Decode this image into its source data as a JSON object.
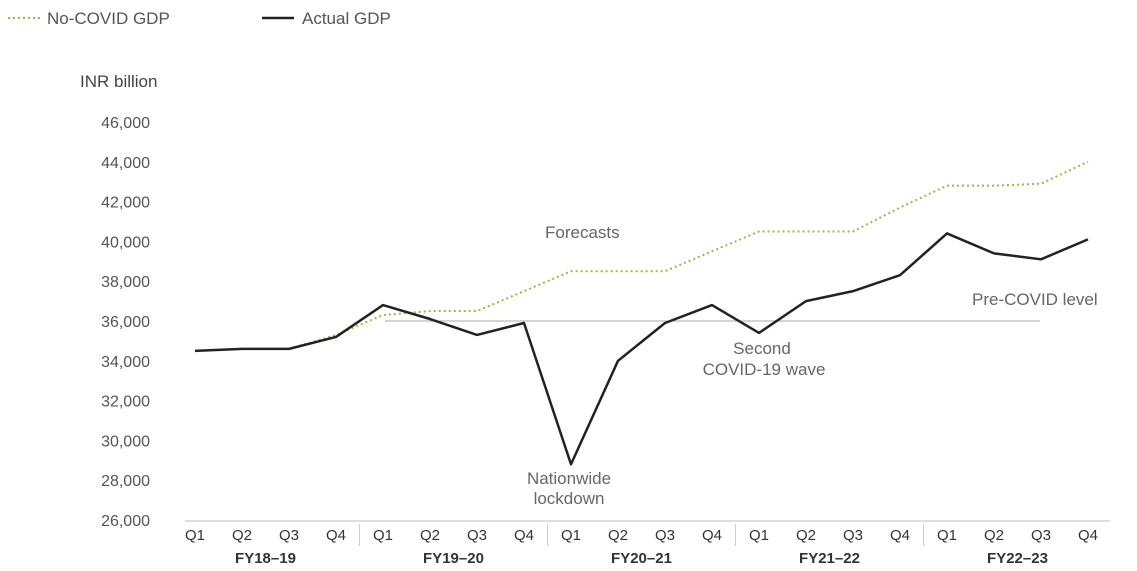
{
  "chart_data": {
    "type": "line",
    "ylabel": "INR billion",
    "ylim": [
      26000,
      46000
    ],
    "yticks": [
      46000,
      44000,
      42000,
      40000,
      38000,
      36000,
      34000,
      32000,
      30000,
      28000,
      26000
    ],
    "ytick_labels": [
      "46,000",
      "44,000",
      "42,000",
      "40,000",
      "38,000",
      "36,000",
      "34,000",
      "32,000",
      "30,000",
      "28,000",
      "26,000"
    ],
    "quarters": [
      "Q1",
      "Q2",
      "Q3",
      "Q4",
      "Q1",
      "Q2",
      "Q3",
      "Q4",
      "Q1",
      "Q2",
      "Q3",
      "Q4",
      "Q1",
      "Q2",
      "Q3",
      "Q4",
      "Q1",
      "Q2",
      "Q3",
      "Q4"
    ],
    "fiscal_years": [
      "FY18–19",
      "FY19–20",
      "FY20–21",
      "FY21–22",
      "FY22–23"
    ],
    "series": [
      {
        "name": "No-COVID GDP",
        "color": "#9ab84a",
        "style": "dotted",
        "values": [
          34500,
          34600,
          34600,
          35300,
          36300,
          36500,
          36500,
          37500,
          38500,
          38500,
          38500,
          39500,
          40500,
          40500,
          40500,
          41700,
          42800,
          42800,
          42900,
          44000
        ]
      },
      {
        "name": "Actual GDP",
        "color": "#222222",
        "style": "solid",
        "values": [
          34500,
          34600,
          34600,
          35200,
          36800,
          36100,
          35300,
          35900,
          28800,
          34000,
          35900,
          36800,
          35400,
          37000,
          37500,
          38300,
          40400,
          39400,
          39100,
          40100
        ]
      }
    ],
    "reference_line": {
      "label": "Pre-COVID level",
      "value": 36000,
      "color": "#aaaaaa"
    },
    "annotations": {
      "forecasts": "Forecasts",
      "lockdown_line1": "Nationwide",
      "lockdown_line2": "lockdown",
      "wave_line1": "Second",
      "wave_line2": "COVID-19 wave"
    },
    "legend_position": "top-left"
  }
}
